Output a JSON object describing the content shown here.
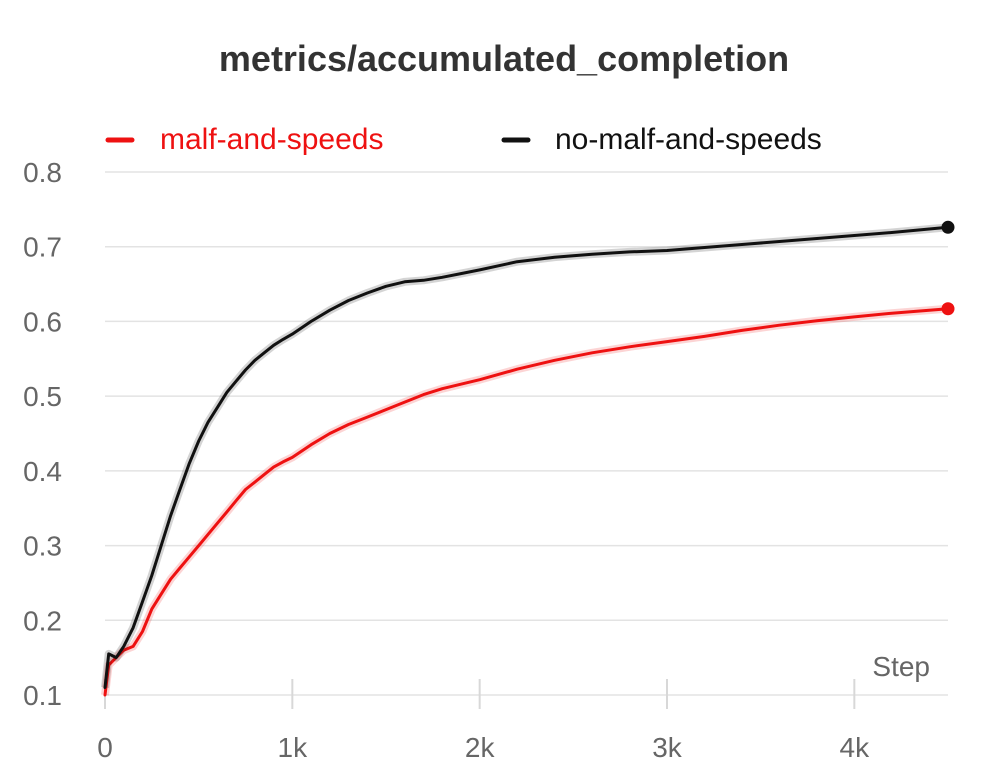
{
  "chart_data": {
    "type": "line",
    "title": "metrics/accumulated_completion",
    "xlabel": "Step",
    "ylabel": "",
    "xlim": [
      0,
      4500
    ],
    "ylim": [
      0.1,
      0.8
    ],
    "x_ticks": [
      0,
      1000,
      2000,
      3000,
      4000
    ],
    "x_tick_labels": [
      "0",
      "1k",
      "2k",
      "3k",
      "4k"
    ],
    "y_ticks": [
      0.1,
      0.2,
      0.3,
      0.4,
      0.5,
      0.6,
      0.7,
      0.8
    ],
    "y_tick_labels": [
      "0.1",
      "0.2",
      "0.3",
      "0.4",
      "0.5",
      "0.6",
      "0.7",
      "0.8"
    ],
    "grid": true,
    "legend_position": "top",
    "series": [
      {
        "name": "malf-and-speeds",
        "color": "#ee1111",
        "x": [
          0,
          20,
          60,
          100,
          150,
          200,
          250,
          300,
          350,
          400,
          450,
          500,
          550,
          600,
          650,
          700,
          750,
          800,
          850,
          900,
          950,
          1000,
          1100,
          1200,
          1300,
          1400,
          1500,
          1600,
          1700,
          1800,
          1900,
          2000,
          2200,
          2400,
          2600,
          2800,
          3000,
          3200,
          3400,
          3600,
          3800,
          4000,
          4200,
          4500
        ],
        "y": [
          0.1,
          0.14,
          0.15,
          0.16,
          0.165,
          0.185,
          0.215,
          0.235,
          0.255,
          0.27,
          0.285,
          0.3,
          0.315,
          0.33,
          0.345,
          0.36,
          0.375,
          0.385,
          0.395,
          0.405,
          0.412,
          0.418,
          0.435,
          0.45,
          0.462,
          0.472,
          0.482,
          0.492,
          0.502,
          0.51,
          0.516,
          0.522,
          0.536,
          0.548,
          0.558,
          0.566,
          0.573,
          0.58,
          0.588,
          0.595,
          0.601,
          0.606,
          0.611,
          0.617
        ]
      },
      {
        "name": "no-malf-and-speeds",
        "color": "#111111",
        "x": [
          0,
          20,
          60,
          100,
          150,
          200,
          250,
          300,
          350,
          400,
          450,
          500,
          550,
          600,
          650,
          700,
          750,
          800,
          850,
          900,
          950,
          1000,
          1100,
          1200,
          1300,
          1400,
          1500,
          1600,
          1700,
          1800,
          1900,
          2000,
          2200,
          2400,
          2600,
          2800,
          3000,
          3200,
          3400,
          3600,
          3800,
          4000,
          4200,
          4500
        ],
        "y": [
          0.11,
          0.155,
          0.15,
          0.165,
          0.19,
          0.225,
          0.26,
          0.3,
          0.34,
          0.375,
          0.41,
          0.44,
          0.465,
          0.485,
          0.505,
          0.52,
          0.535,
          0.548,
          0.558,
          0.568,
          0.576,
          0.583,
          0.6,
          0.615,
          0.628,
          0.638,
          0.647,
          0.653,
          0.655,
          0.659,
          0.664,
          0.669,
          0.68,
          0.686,
          0.69,
          0.693,
          0.695,
          0.699,
          0.703,
          0.707,
          0.711,
          0.715,
          0.719,
          0.726
        ]
      }
    ]
  }
}
